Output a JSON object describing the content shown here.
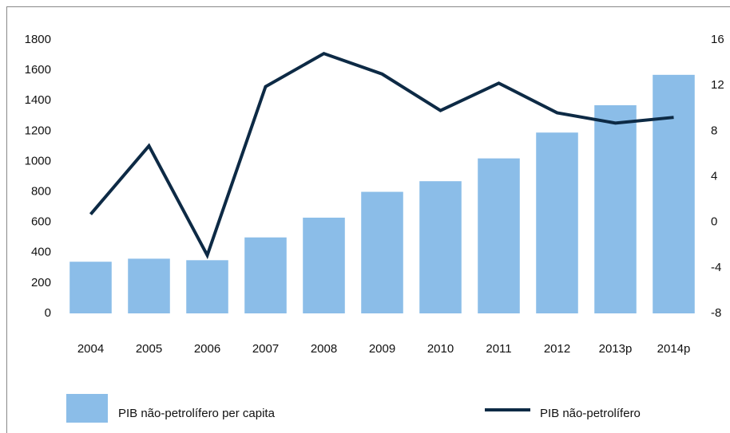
{
  "chart_data": {
    "type": "bar-line",
    "categories": [
      "2004",
      "2005",
      "2006",
      "2007",
      "2008",
      "2009",
      "2010",
      "2011",
      "2012",
      "2013p",
      "2014p"
    ],
    "series": [
      {
        "name": "PIB não-petrolífero per capita",
        "type": "bar",
        "color": "#8bbde8",
        "values": [
          340,
          360,
          350,
          500,
          630,
          800,
          870,
          1020,
          1190,
          1370,
          1570
        ]
      },
      {
        "name": "PIB não-petrolífero",
        "type": "line",
        "axis": "y2",
        "color": "#0d2a45",
        "values": [
          0.7,
          6.7,
          -2.9,
          11.9,
          14.8,
          13.0,
          9.8,
          12.2,
          9.6,
          8.7,
          9.2
        ]
      }
    ],
    "ylim": [
      0,
      1800
    ],
    "yticks": [
      0,
      200,
      400,
      600,
      800,
      1000,
      1200,
      1400,
      1600,
      1800
    ],
    "y2lim": [
      -8,
      16
    ],
    "y2ticks": [
      -8,
      -4,
      0,
      4,
      8,
      12,
      16
    ]
  }
}
